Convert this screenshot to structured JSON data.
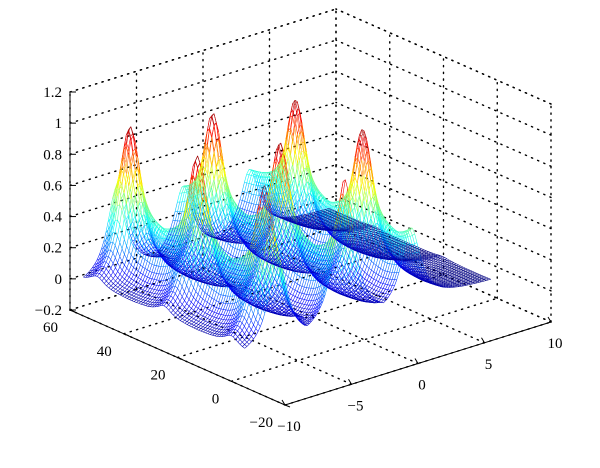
{
  "chart_data": {
    "type": "surface",
    "title": "",
    "xlabel": "",
    "ylabel": "",
    "zlabel": "",
    "colormap": "jet",
    "grid": true,
    "xlim": [
      -10,
      10
    ],
    "ylim": [
      -20,
      60
    ],
    "zlim": [
      -0.2,
      1.2
    ],
    "xticks": [
      -10,
      -5,
      0,
      5,
      10
    ],
    "xtick_labels": [
      "−10",
      "−5",
      "0",
      "5",
      "10"
    ],
    "yticks": [
      -20,
      0,
      20,
      40,
      60
    ],
    "ytick_labels": [
      "−20",
      "0",
      "20",
      "40",
      "60"
    ],
    "zticks": [
      -0.2,
      0,
      0.2,
      0.4,
      0.6,
      0.8,
      1,
      1.2
    ],
    "ztick_labels": [
      "−0.2",
      "0",
      "0.2",
      "0.4",
      "0.6",
      "0.8",
      "1",
      "1.2"
    ],
    "ridges": [
      {
        "x_center": -7.5,
        "baseline": 0.4
      },
      {
        "x_center": -2.5,
        "baseline": 0.4
      },
      {
        "x_center": 2.5,
        "baseline": 0.4
      }
    ],
    "peaks_along_y": [
      0,
      25,
      50
    ],
    "peak_height": 1.0
  }
}
